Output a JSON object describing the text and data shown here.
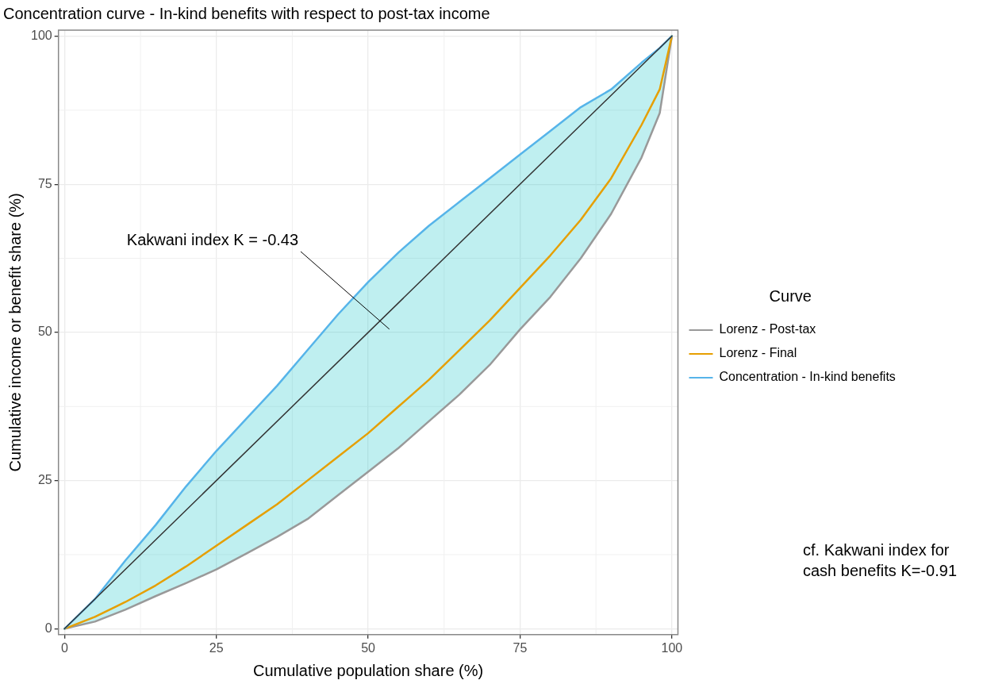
{
  "chart_data": {
    "type": "line",
    "title": "Concentration curve - In-kind benefits with respect to post-tax income",
    "xlabel": "Cumulative population share (%)",
    "ylabel": "Cumulative income or benefit share (%)",
    "legend_title": "Curve",
    "legend": "right",
    "grid": true,
    "x": [
      0,
      5,
      10,
      15,
      20,
      25,
      30,
      35,
      40,
      45,
      50,
      55,
      60,
      65,
      70,
      75,
      80,
      85,
      90,
      95,
      98,
      100
    ],
    "series": [
      {
        "name": "Lorenz - Post-tax",
        "color": "#999999",
        "values": [
          0,
          1.2,
          3.2,
          5.5,
          7.7,
          10,
          12.7,
          15.5,
          18.5,
          22.5,
          26.5,
          30.5,
          35,
          39.5,
          44.5,
          50.5,
          56,
          62.5,
          70,
          79.5,
          87,
          100
        ]
      },
      {
        "name": "Lorenz - Final",
        "color": "#e69f00",
        "values": [
          0,
          2,
          4.5,
          7.3,
          10.5,
          14,
          17.5,
          21,
          25,
          29,
          33,
          37.5,
          42,
          47,
          52,
          57.5,
          63,
          69,
          76,
          85,
          91,
          100
        ]
      },
      {
        "name": "Concentration - In-kind benefits",
        "color": "#56b4e9",
        "values": [
          0,
          5,
          11.5,
          17.5,
          24,
          30,
          35.5,
          41,
          47,
          53,
          58.5,
          63.5,
          68,
          72,
          76,
          80,
          84,
          88,
          91,
          95.5,
          98,
          100
        ],
        "lower": [
          0,
          1.2,
          3.2,
          5.5,
          7.7,
          10,
          12.7,
          15.5,
          18.5,
          22.5,
          26.5,
          30.5,
          35,
          39.5,
          44.5,
          50.5,
          56,
          62.5,
          70,
          79.5,
          87,
          100
        ],
        "upper": [
          0,
          5,
          11.5,
          17.5,
          24,
          30,
          35.5,
          41,
          47,
          53,
          58.5,
          63.5,
          68,
          72,
          76,
          80,
          84,
          88,
          91,
          95.5,
          98,
          100
        ]
      },
      {
        "x": [
          0,
          100
        ],
        "color": "#333333",
        "values": [
          0,
          100
        ]
      }
    ],
    "xlim": [
      -1,
      101
    ],
    "ylim": [
      -1,
      101
    ],
    "xticks": [
      0,
      25,
      50,
      75,
      100
    ],
    "yticks": [
      0,
      25,
      50,
      75,
      100
    ],
    "annotations": [
      "Kakwani index K = -0.43",
      "cf. Kakwani index for cash benefits K=-0.91"
    ]
  }
}
